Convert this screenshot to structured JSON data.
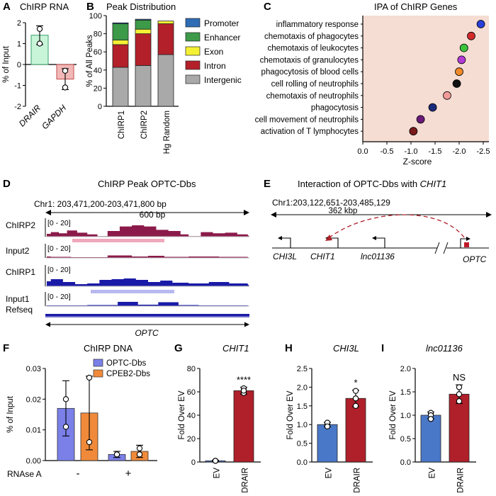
{
  "panels": {
    "A": {
      "letter": "A",
      "title": "ChIRP RNA"
    },
    "B": {
      "letter": "B",
      "title": "Peak Distribution"
    },
    "C": {
      "letter": "C",
      "title": "IPA of ChIRP Genes"
    },
    "D": {
      "letter": "D",
      "title": "ChIRP Peak OPTC-Dbs",
      "coords": "Chr1: 203,471,200-203,471,800 bp",
      "scale": "600 bp",
      "tracks": [
        {
          "name": "ChIRP2",
          "range": "[0 - 20]",
          "color": "#8b1a4a"
        },
        {
          "name": "Input2",
          "range": "[0 - 20]",
          "color": "#8b1a4a"
        },
        {
          "name": "ChIRP1",
          "range": "[0 - 20]",
          "color": "#1a1aa8"
        },
        {
          "name": "Input1",
          "range": "[0 - 20]",
          "color": "#1a1aa8"
        },
        {
          "name": "Refseq",
          "range": "",
          "color": "#1a1aa8"
        }
      ],
      "gene": "OPTC"
    },
    "E": {
      "letter": "E",
      "title": "Interaction of OPTC-Dbs with ",
      "title_gene": "CHIT1",
      "coords": "Chr1:203,122,651-203,485,129",
      "scale": "362 kbp",
      "genes": [
        "CHI3L",
        "CHIT1",
        "lnc01136",
        "OPTC"
      ]
    },
    "F": {
      "letter": "F",
      "title": "ChIRP DNA"
    },
    "G": {
      "letter": "G",
      "title": "CHIT1"
    },
    "H": {
      "letter": "H",
      "title": "CHI3L"
    },
    "I": {
      "letter": "I",
      "title": "lnc01136"
    }
  },
  "chart_data": [
    {
      "id": "A",
      "type": "bar",
      "ylabel": "% of Input",
      "categories": [
        "DRAIR",
        "GAPDH"
      ],
      "values": [
        1.4,
        -0.7
      ],
      "errors": [
        0.45,
        0.5
      ],
      "points": [
        [
          1.7,
          1.0
        ],
        [
          -0.3,
          -1.1
        ]
      ],
      "colors": [
        "#c8f5d8",
        "#f2b8b8"
      ],
      "edge_colors": [
        "#3aa06a",
        "#c24a4a"
      ],
      "ylim": [
        -2,
        2
      ],
      "yticks": [
        -2,
        -1,
        0,
        1,
        2
      ]
    },
    {
      "id": "B",
      "type": "bar",
      "stacked": true,
      "ylabel": "% of All Peaks",
      "categories": [
        "ChIRP1",
        "ChIRP2",
        "Hg Random"
      ],
      "ylim": [
        0,
        100
      ],
      "yticks": [
        0,
        20,
        40,
        60,
        80,
        100
      ],
      "series": [
        {
          "name": "Intergenic",
          "color": "#a9a9a9",
          "values": [
            43,
            45,
            57
          ]
        },
        {
          "name": "Intron",
          "color": "#b3202a",
          "values": [
            25,
            35,
            34
          ]
        },
        {
          "name": "Exon",
          "color": "#f4f034",
          "values": [
            5,
            5,
            3
          ]
        },
        {
          "name": "Enhancer",
          "color": "#3c9a49",
          "values": [
            18,
            10,
            0
          ]
        },
        {
          "name": "Promoter",
          "color": "#2f6db5",
          "values": [
            1,
            1,
            0
          ]
        }
      ],
      "legend_order": [
        "Promoter",
        "Enhancer",
        "Exon",
        "Intron",
        "Intergenic"
      ]
    },
    {
      "id": "C",
      "type": "scatter",
      "xlabel": "Z-score",
      "xlim": [
        0,
        -2.5
      ],
      "xticks": [
        "0.0",
        "-0.5",
        "-1.0",
        "-1.5",
        "-2.0",
        "-2.5"
      ],
      "categories": [
        "inflammatory response",
        "chemotaxis of phagocytes",
        "chemotaxis of leukocytes",
        "chemotaxis of granulocytes",
        "phagocytosis of blood cells",
        "cell rolling of neutrophils",
        "chemotaxis of neutrophils",
        "phagocytosis",
        "cell movement of neutrophils",
        "activation of T lymphocytes"
      ],
      "values": [
        -2.45,
        -2.25,
        -2.1,
        -2.05,
        -2.0,
        -1.95,
        -1.75,
        -1.45,
        -1.2,
        -1.05
      ],
      "colors": [
        "#2a3fd6",
        "#d42a2a",
        "#3bc43b",
        "#b43bd6",
        "#f08a2a",
        "#111111",
        "#f29a9a",
        "#1a2a7a",
        "#6a1a7a",
        "#7a1a1a"
      ]
    },
    {
      "id": "F",
      "type": "bar",
      "ylabel": "% of Input",
      "xlabel": "RNAse A",
      "groups": [
        "-",
        "+"
      ],
      "series": [
        {
          "name": "OPTC-Dbs",
          "color": "#7a80e8",
          "values": [
            0.017,
            0.002
          ],
          "errors": [
            0.009,
            0.001
          ],
          "points": [
            [
              0.02,
              0.011
            ],
            [
              0.002,
              0.002
            ]
          ]
        },
        {
          "name": "CPEB2-Dbs",
          "color": "#f08a3a",
          "values": [
            0.0155,
            0.003
          ],
          "errors": [
            0.012,
            0.002
          ],
          "points": [
            [
              0.027,
              0.006
            ],
            [
              0.004,
              0.002
            ]
          ]
        }
      ],
      "ylim": [
        0,
        0.03
      ],
      "yticks": [
        "0.00",
        "0.01",
        "0.02",
        "0.03"
      ]
    },
    {
      "id": "G",
      "type": "bar",
      "ylabel": "Fold Over EV",
      "categories": [
        "EV",
        "DRAIR"
      ],
      "values": [
        1,
        61
      ],
      "errors": [
        0.5,
        3
      ],
      "points": [
        [
          1,
          1,
          1
        ],
        [
          63,
          59,
          61
        ]
      ],
      "colors": [
        "#4a78c8",
        "#b0202a"
      ],
      "ylim": [
        0,
        80
      ],
      "yticks": [
        0,
        20,
        40,
        60,
        80
      ],
      "annotation": "****"
    },
    {
      "id": "H",
      "type": "bar",
      "ylabel": "Fold Over EV",
      "categories": [
        "EV",
        "DRAIR"
      ],
      "values": [
        1.0,
        1.7
      ],
      "errors": [
        0.06,
        0.22
      ],
      "points": [
        [
          1.0,
          1.05,
          0.95
        ],
        [
          1.9,
          1.5,
          1.7
        ]
      ],
      "colors": [
        "#4a78c8",
        "#b0202a"
      ],
      "ylim": [
        0,
        2.5
      ],
      "yticks": [
        "0.0",
        "0.5",
        "1.0",
        "1.5",
        "2.0",
        "2.5"
      ],
      "annotation": "*"
    },
    {
      "id": "I",
      "type": "bar",
      "ylabel": "Fold Over EV",
      "categories": [
        "EV",
        "DRAIR"
      ],
      "values": [
        1.0,
        1.45
      ],
      "errors": [
        0.07,
        0.2
      ],
      "points": [
        [
          1.05,
          1.0,
          0.92
        ],
        [
          1.6,
          1.3,
          1.45
        ]
      ],
      "colors": [
        "#4a78c8",
        "#b0202a"
      ],
      "ylim": [
        0,
        2.0
      ],
      "yticks": [
        "0.0",
        "0.5",
        "1.0",
        "1.5",
        "2.0"
      ],
      "annotation": "NS"
    }
  ]
}
